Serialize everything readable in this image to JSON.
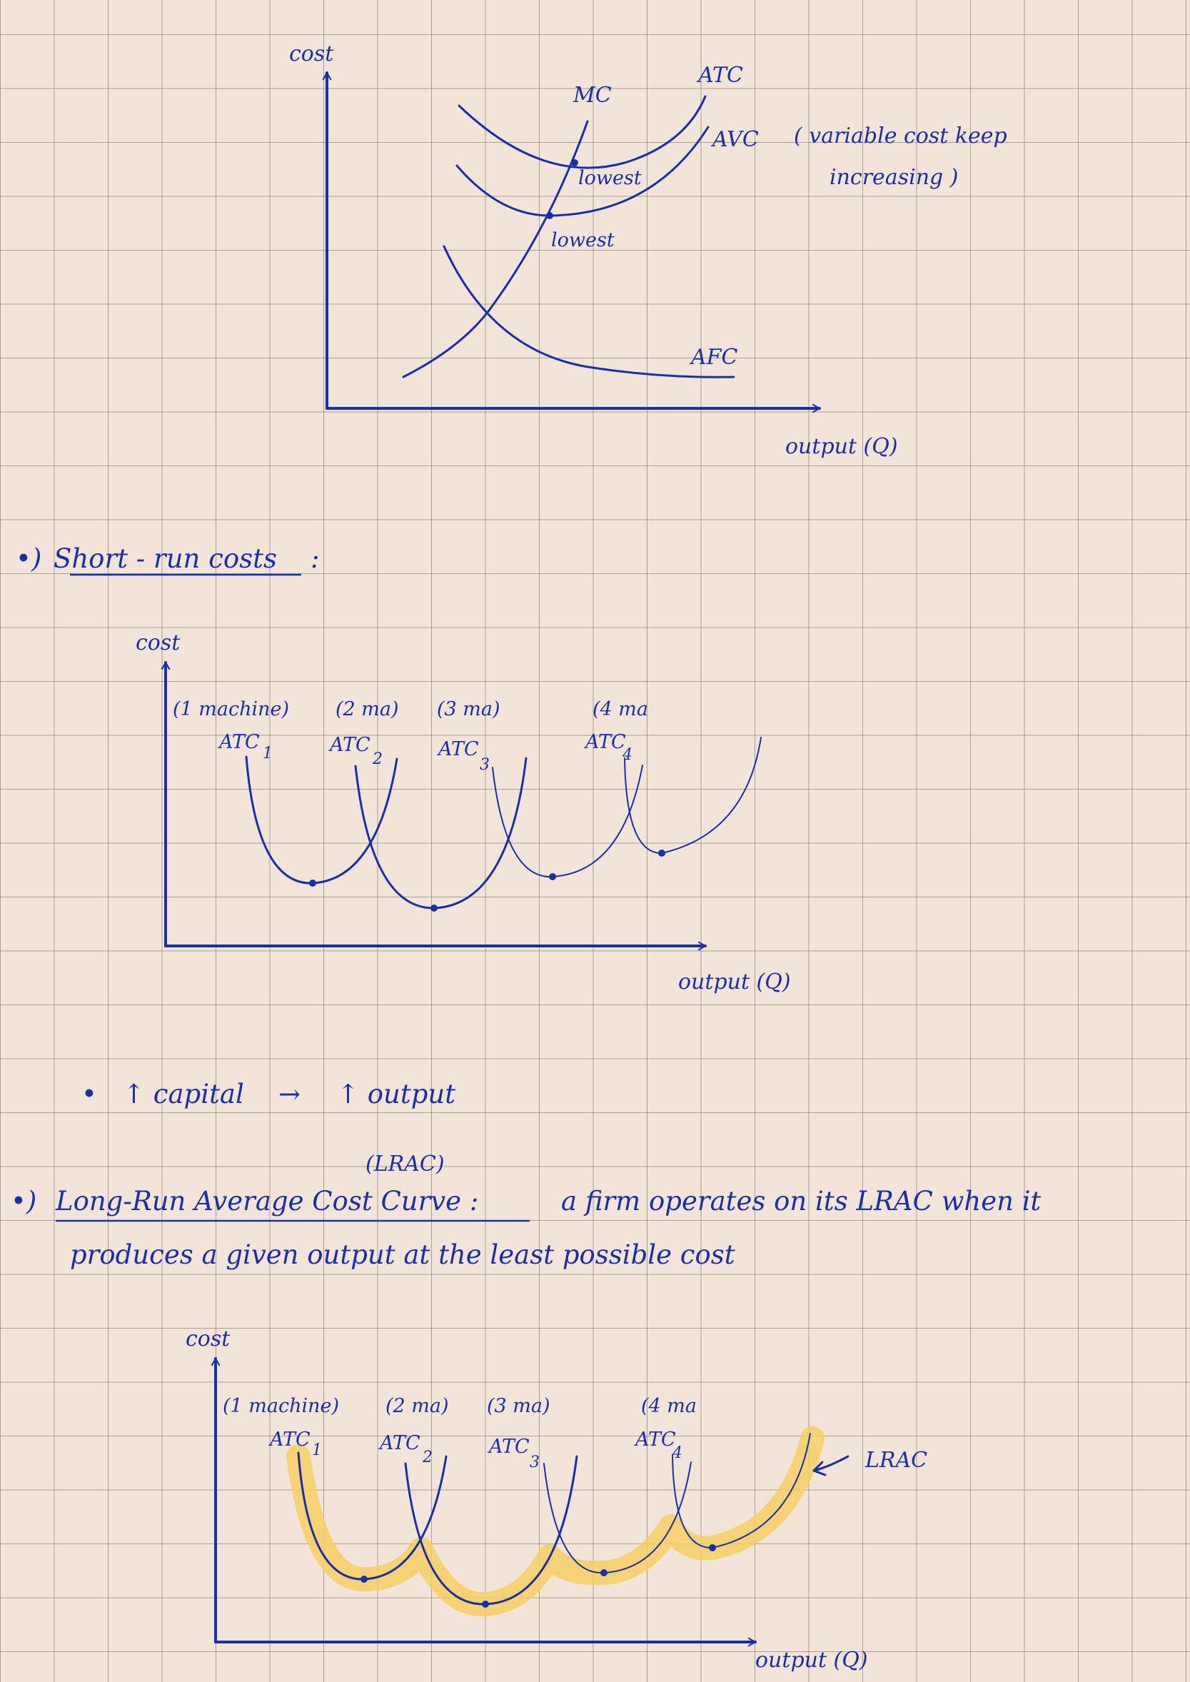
{
  "colors": {
    "ink": "#1a2fa6",
    "purple": "#9a3ee0",
    "green": "#3a8a6a",
    "orange": "#ef7a5a",
    "highlight": "#f5cf63",
    "paper": "#f3e4da"
  },
  "fig1": {
    "ylabel": "cost",
    "xlabel": "output (Q)",
    "mc": "MC",
    "atc": "ATC",
    "avc": "AVC",
    "afc": "AFC",
    "lowest_atc": "lowest",
    "lowest_avc": "lowest",
    "note_line1": "( variable cost keep",
    "note_line2": "increasing )"
  },
  "section1": {
    "bullet": "•)",
    "title": "Short - run costs",
    "colon": ":"
  },
  "fig2": {
    "ylabel": "cost",
    "xlabel": "output (Q)",
    "curves": [
      {
        "machine": "(1 machine)",
        "name": "ATC",
        "sub": "1"
      },
      {
        "machine": "(2 ma)",
        "name": "ATC",
        "sub": "2"
      },
      {
        "machine": "(3 ma)",
        "name": "ATC",
        "sub": "3"
      },
      {
        "machine": "(4 ma",
        "name": "ATC",
        "sub": "4"
      }
    ]
  },
  "bullet_line": {
    "dot": "•",
    "up1": "↑ capital",
    "arrow": "→",
    "up2": "↑ output"
  },
  "section2": {
    "bullet": "•)",
    "abbr": "(LRAC)",
    "title": "Long-Run Average Cost Curve :",
    "text_line1": "a firm operates on its LRAC when it",
    "text_line2": "produces a given output at the least possible cost"
  },
  "fig3": {
    "ylabel": "cost",
    "xlabel": "output (Q)",
    "lrac": "LRAC",
    "curves": [
      {
        "machine": "(1 machine)",
        "name": "ATC",
        "sub": "1"
      },
      {
        "machine": "(2 ma)",
        "name": "ATC",
        "sub": "2"
      },
      {
        "machine": "(3 ma)",
        "name": "ATC",
        "sub": "3"
      },
      {
        "machine": "(4 ma",
        "name": "ATC",
        "sub": "4"
      }
    ]
  }
}
